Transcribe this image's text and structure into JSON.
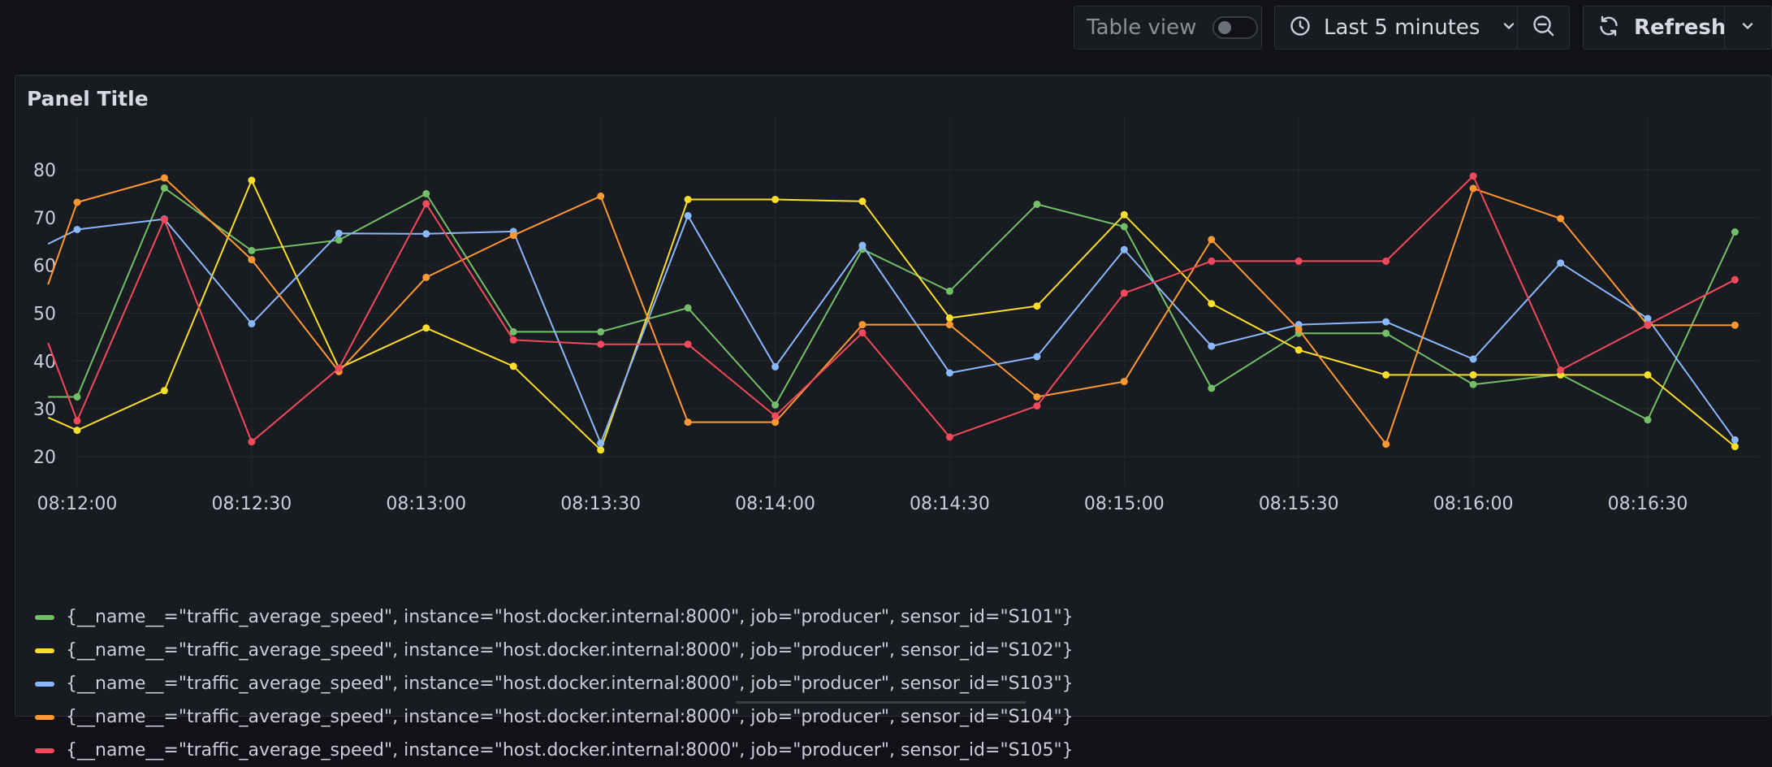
{
  "toolbar": {
    "table_view_label": "Table view",
    "table_view_on": false,
    "time_range_label": "Last 5 minutes",
    "refresh_label": "Refresh",
    "icons": {
      "clock": "clock-icon",
      "chevron": "chevron-down-icon",
      "zoom_out": "zoom-out-icon",
      "refresh": "refresh-icon"
    }
  },
  "panel": {
    "title": "Panel Title"
  },
  "chart_data": {
    "type": "line",
    "title": "Panel Title",
    "xlabel": "",
    "ylabel": "",
    "x_ticks": [
      "08:12:00",
      "08:12:30",
      "08:13:00",
      "08:13:30",
      "08:14:00",
      "08:14:30",
      "08:15:00",
      "08:15:30",
      "08:16:00",
      "08:16:30"
    ],
    "y_ticks": [
      20,
      30,
      40,
      50,
      60,
      70,
      80
    ],
    "ylim": [
      16,
      85
    ],
    "xlim": [
      "08:11:56",
      "08:17:01"
    ],
    "grid": true,
    "legend_position": "bottom",
    "x": [
      "08:11:55",
      "08:12:00",
      "08:12:15",
      "08:12:30",
      "08:12:45",
      "08:13:00",
      "08:13:15",
      "08:13:30",
      "08:13:45",
      "08:14:00",
      "08:14:15",
      "08:14:30",
      "08:14:45",
      "08:15:00",
      "08:15:15",
      "08:15:30",
      "08:15:45",
      "08:16:00",
      "08:16:15",
      "08:16:30",
      "08:16:45"
    ],
    "series": [
      {
        "name": "{__name__=\"traffic_average_speed\", instance=\"host.docker.internal:8000\", job=\"producer\", sensor_id=\"S101\"}",
        "color": "#73bf69",
        "values": [
          32.5,
          32.5,
          76.2,
          63.1,
          65.3,
          75.0,
          46.1,
          46.1,
          51.1,
          30.8,
          63.4,
          54.6,
          72.8,
          68.1,
          34.3,
          45.8,
          45.8,
          35.1,
          37.2,
          27.7,
          67.0
        ]
      },
      {
        "name": "{__name__=\"traffic_average_speed\", instance=\"host.docker.internal:8000\", job=\"producer\", sensor_id=\"S102\"}",
        "color": "#fade2a",
        "values": [
          28.2,
          25.5,
          33.8,
          77.8,
          38.5,
          46.9,
          38.9,
          21.4,
          73.8,
          73.8,
          73.4,
          49.0,
          51.5,
          70.6,
          52.0,
          42.3,
          37.1,
          37.1,
          37.1,
          37.1,
          22.1
        ]
      },
      {
        "name": "{__name__=\"traffic_average_speed\", instance=\"host.docker.internal:8000\", job=\"producer\", sensor_id=\"S103\"}",
        "color": "#8ab8ff",
        "values": [
          64.5,
          67.5,
          69.7,
          47.8,
          66.7,
          66.6,
          67.1,
          22.8,
          70.4,
          38.8,
          64.2,
          37.5,
          40.9,
          63.3,
          43.1,
          47.6,
          48.2,
          40.4,
          60.5,
          48.9,
          23.5
        ]
      },
      {
        "name": "{__name__=\"traffic_average_speed\", instance=\"host.docker.internal:8000\", job=\"producer\", sensor_id=\"S104\"}",
        "color": "#ff9830",
        "values": [
          56.0,
          73.2,
          78.3,
          61.2,
          37.8,
          57.5,
          66.3,
          74.5,
          27.2,
          27.2,
          47.6,
          47.6,
          32.5,
          35.7,
          65.4,
          46.6,
          22.6,
          76.1,
          69.8,
          47.5,
          47.5
        ]
      },
      {
        "name": "{__name__=\"traffic_average_speed\", instance=\"host.docker.internal:8000\", job=\"producer\", sensor_id=\"S105\"}",
        "color": "#f2495c",
        "values": [
          43.8,
          27.5,
          69.6,
          23.1,
          38.5,
          72.9,
          44.4,
          43.5,
          43.5,
          28.5,
          45.9,
          24.1,
          30.6,
          54.2,
          60.9,
          60.9,
          60.9,
          78.7,
          38.1,
          47.6,
          57.0
        ]
      }
    ]
  }
}
